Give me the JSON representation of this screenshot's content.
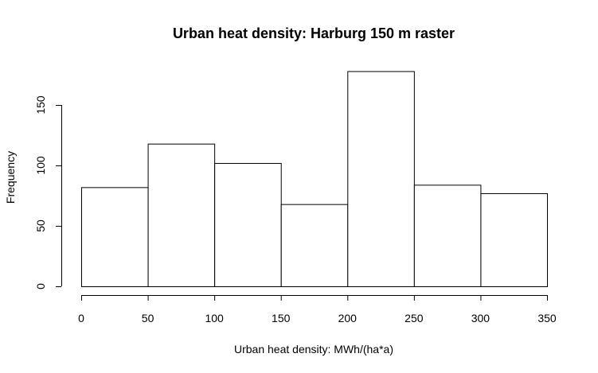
{
  "chart_data": {
    "type": "bar",
    "title": "Urban heat density: Harburg 150 m raster",
    "xlabel": "Urban heat density: MWh/(ha*a)",
    "ylabel": "Frequency",
    "bins": [
      [
        0,
        50
      ],
      [
        50,
        100
      ],
      [
        100,
        150
      ],
      [
        150,
        200
      ],
      [
        200,
        250
      ],
      [
        250,
        300
      ],
      [
        300,
        350
      ]
    ],
    "values": [
      82,
      118,
      102,
      68,
      178,
      84,
      77
    ],
    "xlim": [
      0,
      350
    ],
    "ylim": [
      0,
      180
    ],
    "xticks": [
      "0",
      "50",
      "100",
      "150",
      "200",
      "250",
      "300",
      "350"
    ],
    "yticks": [
      "0",
      "50",
      "100",
      "150"
    ],
    "grid": false,
    "bar_fill": "#ffffff",
    "bar_stroke": "#000000"
  }
}
